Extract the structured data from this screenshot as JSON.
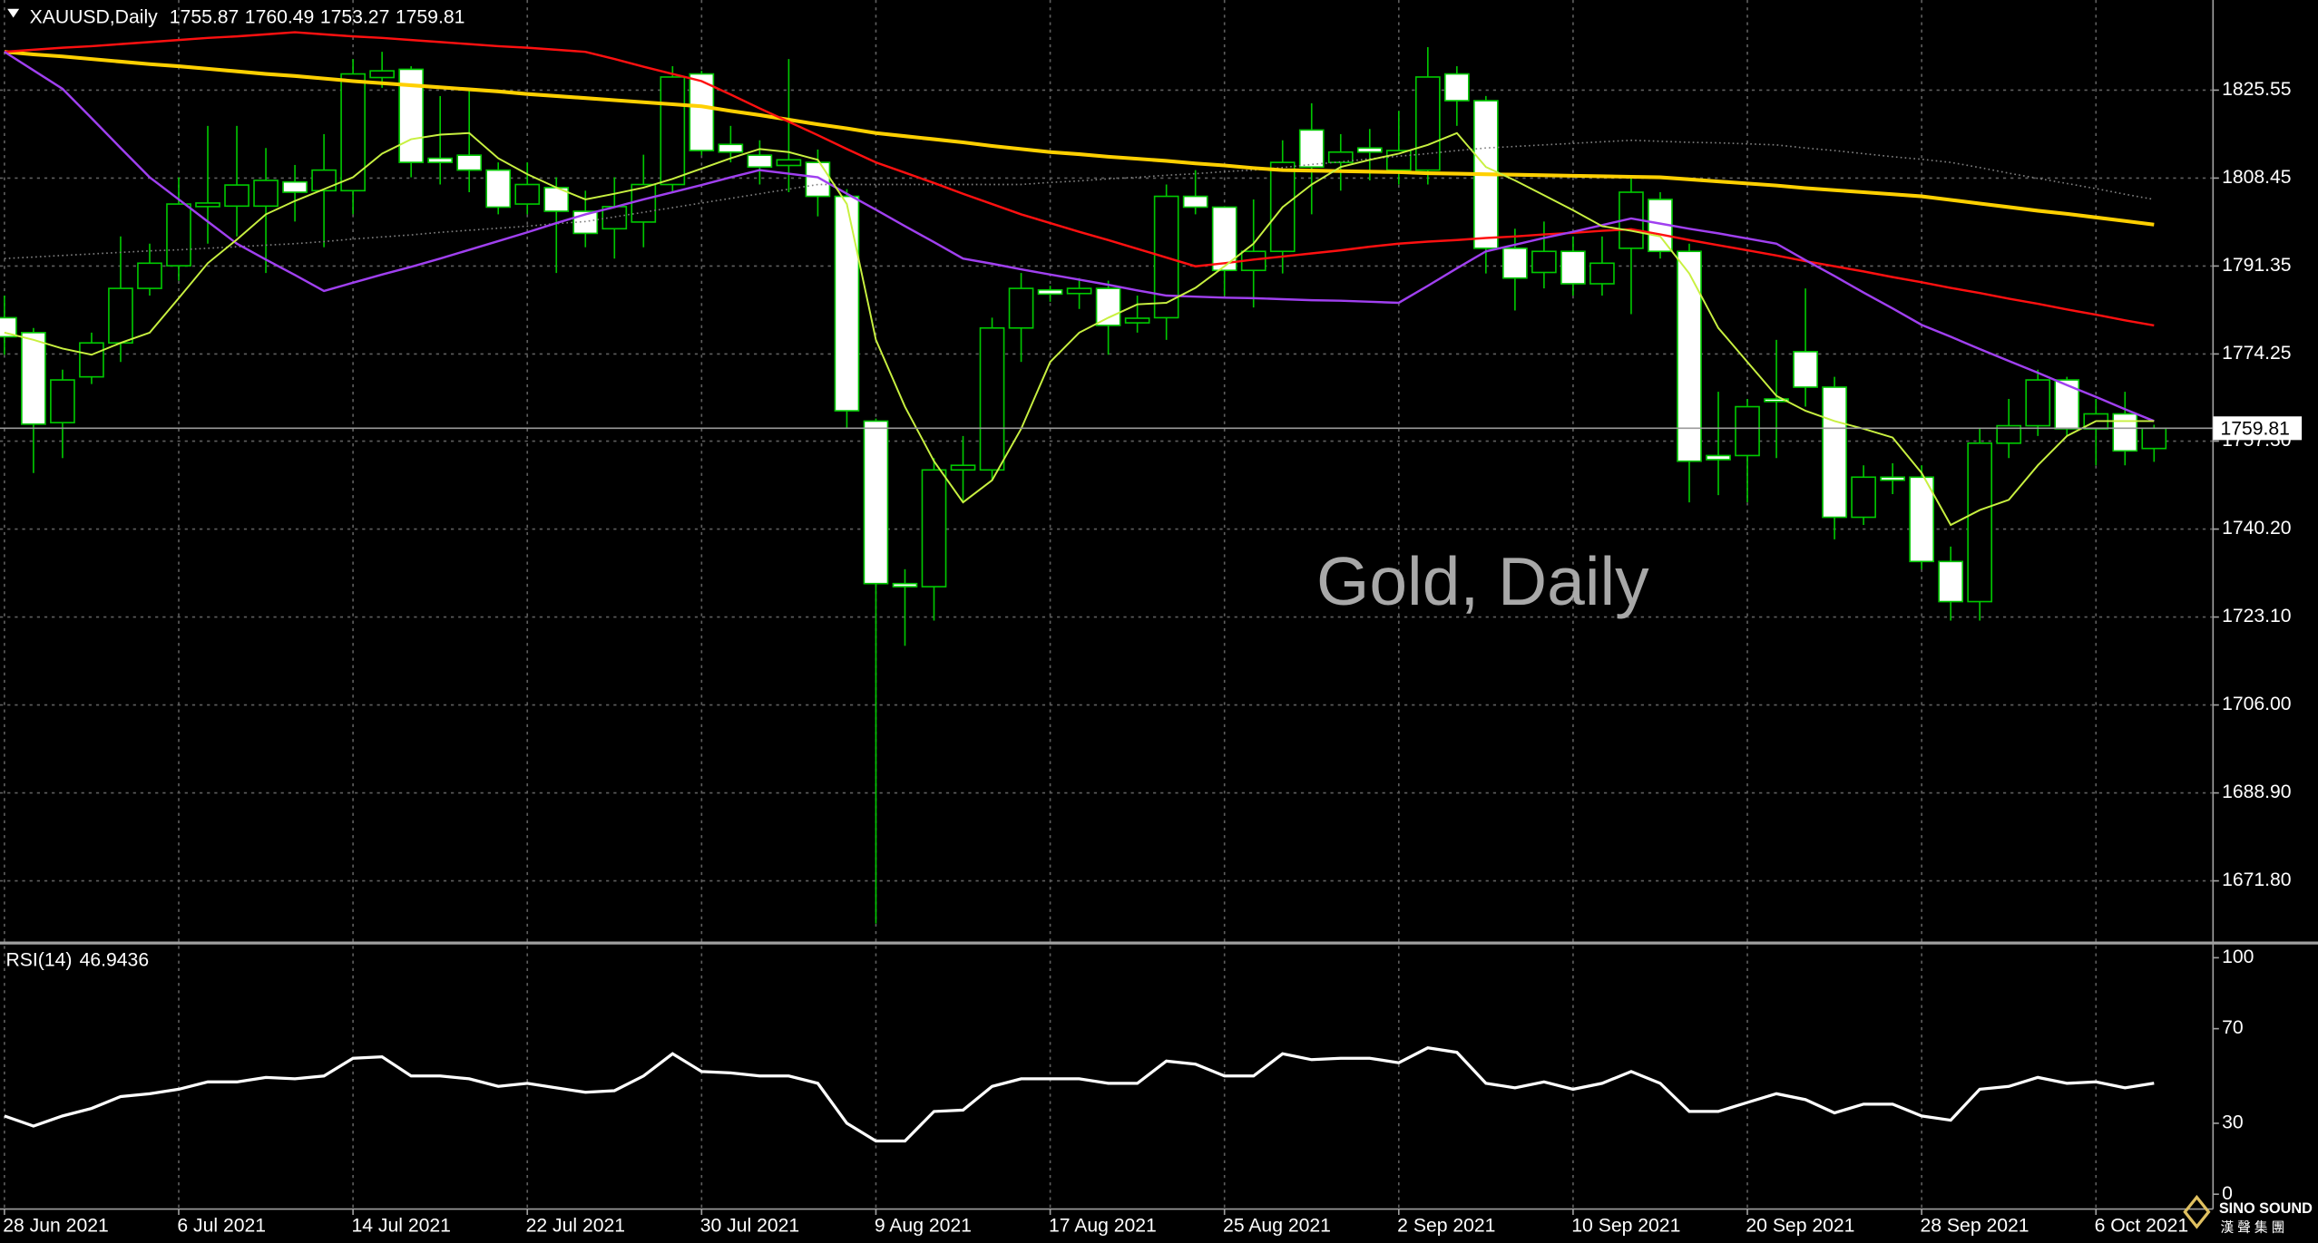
{
  "chart_data": {
    "type": "candlestick",
    "symbol": "XAUUSD,Daily",
    "watermark": "Gold, Daily",
    "categories": [
      "28 Jun 2021",
      null,
      null,
      null,
      null,
      null,
      "6 Jul 2021",
      null,
      null,
      null,
      null,
      null,
      "14 Jul 2021",
      null,
      null,
      null,
      null,
      null,
      "22 Jul 2021",
      null,
      null,
      null,
      null,
      null,
      "30 Jul 2021",
      null,
      null,
      null,
      null,
      null,
      "9 Aug 2021",
      null,
      null,
      null,
      null,
      null,
      "17 Aug 2021",
      null,
      null,
      null,
      null,
      null,
      "25 Aug 2021",
      null,
      null,
      null,
      null,
      null,
      "2 Sep 2021",
      null,
      null,
      null,
      null,
      null,
      "10 Sep 2021",
      null,
      null,
      null,
      null,
      null,
      "20 Sep 2021",
      null,
      null,
      null,
      null,
      null,
      "28 Sep 2021",
      null,
      null,
      null,
      null,
      null,
      "6 Oct 2021",
      null,
      null
    ],
    "open": [
      1781.3,
      1778.4,
      1760.9,
      1769.8,
      1776.4,
      1787.0,
      1791.4,
      1802.9,
      1803.0,
      1803.0,
      1807.7,
      1806.0,
      1806.0,
      1828.0,
      1829.6,
      1812.3,
      1812.9,
      1810.0,
      1803.4,
      1806.6,
      1802.0,
      1798.6,
      1799.9,
      1807.2,
      1828.7,
      1815.0,
      1812.9,
      1810.9,
      1811.5,
      1804.9,
      1761.2,
      1729.6,
      1729.0,
      1751.7,
      1751.7,
      1779.3,
      1786.7,
      1786.0,
      1787.0,
      1780.3,
      1781.3,
      1804.9,
      1802.8,
      1790.5,
      1794.2,
      1817.8,
      1811.5,
      1814.3,
      1810.0,
      1810.0,
      1828.7,
      1823.5,
      1794.8,
      1790.1,
      1794.2,
      1787.9,
      1794.8,
      1804.3,
      1794.2,
      1754.5,
      1754.5,
      1765.5,
      1774.7,
      1767.8,
      1742.5,
      1750.3,
      1750.3,
      1733.9,
      1726.1,
      1756.9,
      1760.3,
      1769.2,
      1759.7,
      1762.6,
      1755.87
    ],
    "high": [
      1785.6,
      1779.3,
      1771.2,
      1778.4,
      1797.1,
      1795.7,
      1808.6,
      1818.6,
      1818.6,
      1814.3,
      1811.0,
      1817.0,
      1831.6,
      1833.0,
      1830.2,
      1824.4,
      1825.8,
      1811.5,
      1811.5,
      1808.6,
      1806.0,
      1808.6,
      1813.0,
      1830.2,
      1829.3,
      1818.6,
      1815.8,
      1831.6,
      1814.0,
      1806.3,
      1761.7,
      1732.4,
      1754.0,
      1758.3,
      1781.3,
      1790.0,
      1787.5,
      1789.0,
      1788.5,
      1785.6,
      1807.2,
      1810.0,
      1803.0,
      1804.3,
      1815.8,
      1823.0,
      1817.0,
      1818.0,
      1821.5,
      1833.9,
      1830.2,
      1824.4,
      1798.6,
      1800.0,
      1797.1,
      1797.1,
      1808.6,
      1805.7,
      1795.7,
      1766.9,
      1765.5,
      1777.0,
      1787.0,
      1769.8,
      1752.6,
      1753.0,
      1752.6,
      1736.8,
      1759.7,
      1765.5,
      1771.2,
      1769.8,
      1765.5,
      1766.9,
      1760.49
    ],
    "low": [
      1774.1,
      1751.1,
      1754.0,
      1768.4,
      1772.7,
      1785.6,
      1788.5,
      1795.7,
      1797.1,
      1790.0,
      1800.0,
      1795.0,
      1801.4,
      1826.0,
      1808.6,
      1807.2,
      1805.7,
      1801.4,
      1801.4,
      1790.0,
      1795.0,
      1792.8,
      1795.0,
      1805.7,
      1812.9,
      1811.5,
      1807.2,
      1805.7,
      1801.0,
      1759.7,
      1663.5,
      1717.5,
      1722.4,
      1745.4,
      1749.7,
      1772.7,
      1784.4,
      1783.0,
      1774.1,
      1778.4,
      1777.0,
      1801.4,
      1785.6,
      1783.3,
      1789.9,
      1801.4,
      1806.0,
      1808.0,
      1807.2,
      1807.2,
      1818.6,
      1789.9,
      1782.7,
      1787.0,
      1785.6,
      1785.6,
      1782.0,
      1792.8,
      1745.4,
      1746.8,
      1745.4,
      1754.0,
      1764.0,
      1738.2,
      1741.0,
      1747.0,
      1732.4,
      1722.4,
      1722.4,
      1754.0,
      1758.3,
      1758.3,
      1752.6,
      1752.6,
      1753.27
    ],
    "close": [
      1777.6,
      1760.6,
      1769.2,
      1776.4,
      1787.0,
      1791.9,
      1803.4,
      1803.6,
      1807.1,
      1808.0,
      1805.7,
      1810.0,
      1828.7,
      1829.3,
      1811.5,
      1811.5,
      1810.0,
      1802.8,
      1807.2,
      1802.0,
      1797.7,
      1802.9,
      1807.2,
      1828.1,
      1813.8,
      1813.5,
      1810.6,
      1812.0,
      1804.9,
      1763.2,
      1729.6,
      1729.0,
      1751.7,
      1752.6,
      1779.3,
      1787.0,
      1785.9,
      1787.0,
      1779.8,
      1781.2,
      1804.9,
      1802.8,
      1790.5,
      1794.2,
      1811.5,
      1810.6,
      1813.5,
      1813.5,
      1813.8,
      1828.1,
      1823.5,
      1794.8,
      1789.0,
      1794.2,
      1787.9,
      1791.9,
      1805.7,
      1794.2,
      1753.4,
      1753.7,
      1764.0,
      1765.0,
      1767.8,
      1742.5,
      1750.3,
      1749.7,
      1733.9,
      1726.1,
      1756.9,
      1760.3,
      1769.2,
      1759.7,
      1762.6,
      1755.4,
      1759.81
    ],
    "up_color": "#000000",
    "down_color": "#ffffff",
    "wick_color": "#00c800",
    "series": [
      {
        "color": "#808080",
        "dashed": true,
        "values": [
          1792.8,
          1793.1,
          1793.4,
          1793.7,
          1794.0,
          1794.3,
          1794.5,
          1794.8,
          1795.1,
          1795.4,
          1795.7,
          1796.1,
          1796.6,
          1797.0,
          1797.4,
          1797.9,
          1798.3,
          1798.7,
          1799.1,
          1799.6,
          1800.0,
          1800.9,
          1801.8,
          1802.7,
          1803.6,
          1804.5,
          1805.4,
          1806.3,
          1807.2,
          1807.2,
          1807.2,
          1807.2,
          1807.2,
          1807.2,
          1807.2,
          1807.2,
          1807.6,
          1807.9,
          1808.3,
          1808.6,
          1809.0,
          1809.3,
          1809.7,
          1810.0,
          1810.5,
          1811.1,
          1811.6,
          1812.2,
          1812.7,
          1813.2,
          1813.8,
          1814.3,
          1814.6,
          1814.9,
          1815.2,
          1815.5,
          1815.8,
          1815.6,
          1815.4,
          1815.3,
          1815.1,
          1814.9,
          1814.3,
          1813.8,
          1813.2,
          1812.6,
          1812.1,
          1811.5,
          1810.5,
          1809.4,
          1808.4,
          1807.4,
          1806.4,
          1805.3,
          1804.3
        ]
      },
      {
        "color": "#ffd000",
        "width": 2.5,
        "values": [
          1833.0,
          1832.5,
          1832.1,
          1831.6,
          1831.1,
          1830.6,
          1830.2,
          1829.7,
          1829.2,
          1828.7,
          1828.3,
          1827.8,
          1827.3,
          1826.9,
          1826.5,
          1826.1,
          1825.7,
          1825.3,
          1824.8,
          1824.4,
          1824.0,
          1823.6,
          1823.2,
          1822.8,
          1822.4,
          1821.5,
          1820.7,
          1819.8,
          1818.9,
          1818.1,
          1817.2,
          1816.6,
          1816.0,
          1815.4,
          1814.7,
          1814.1,
          1813.5,
          1813.1,
          1812.6,
          1812.2,
          1811.8,
          1811.3,
          1810.9,
          1810.4,
          1810.0,
          1809.9,
          1809.8,
          1809.7,
          1809.6,
          1809.4,
          1809.3,
          1809.2,
          1809.1,
          1809.0,
          1808.9,
          1808.8,
          1808.7,
          1808.6,
          1808.2,
          1807.8,
          1807.4,
          1807.0,
          1806.5,
          1806.1,
          1805.7,
          1805.3,
          1804.9,
          1804.2,
          1803.5,
          1802.8,
          1802.1,
          1801.5,
          1800.8,
          1800.1,
          1799.4
        ]
      },
      {
        "color": "#ff1010",
        "width": 1.5,
        "values": [
          1833.0,
          1833.4,
          1833.8,
          1834.1,
          1834.5,
          1834.9,
          1835.3,
          1835.7,
          1836.0,
          1836.4,
          1836.8,
          1836.4,
          1836.0,
          1835.7,
          1835.3,
          1834.9,
          1834.5,
          1834.1,
          1833.8,
          1833.4,
          1833.0,
          1831.6,
          1830.1,
          1828.7,
          1827.3,
          1824.7,
          1822.0,
          1819.4,
          1816.8,
          1814.1,
          1811.5,
          1809.5,
          1807.5,
          1805.4,
          1803.4,
          1801.4,
          1799.7,
          1798.0,
          1796.4,
          1794.7,
          1793.0,
          1791.3,
          1791.9,
          1792.6,
          1793.2,
          1793.8,
          1794.4,
          1795.1,
          1795.7,
          1796.1,
          1796.4,
          1796.8,
          1797.1,
          1797.5,
          1797.8,
          1798.2,
          1798.5,
          1797.5,
          1796.4,
          1795.4,
          1794.4,
          1793.4,
          1792.3,
          1791.3,
          1790.3,
          1789.2,
          1788.2,
          1787.1,
          1786.1,
          1785.0,
          1784.0,
          1782.9,
          1781.9,
          1780.8,
          1779.8
        ]
      },
      {
        "color": "#a040f0",
        "width": 1.5,
        "values": [
          1833.0,
          1829.4,
          1825.8,
          1820.1,
          1814.3,
          1808.6,
          1804.3,
          1800.0,
          1795.7,
          1792.6,
          1789.6,
          1786.5,
          1788.1,
          1789.7,
          1791.2,
          1792.8,
          1794.5,
          1796.2,
          1797.9,
          1799.7,
          1801.4,
          1802.8,
          1804.3,
          1805.7,
          1807.1,
          1808.6,
          1810.0,
          1809.3,
          1808.6,
          1805.4,
          1802.3,
          1799.1,
          1796.0,
          1792.8,
          1791.8,
          1790.7,
          1789.7,
          1788.7,
          1787.7,
          1786.6,
          1785.6,
          1785.4,
          1785.2,
          1785.1,
          1784.9,
          1784.7,
          1784.6,
          1784.4,
          1784.2,
          1787.5,
          1790.9,
          1794.2,
          1795.5,
          1796.8,
          1798.0,
          1799.3,
          1800.6,
          1799.6,
          1798.6,
          1797.7,
          1796.7,
          1795.7,
          1792.5,
          1789.4,
          1786.2,
          1783.1,
          1779.9,
          1777.6,
          1775.2,
          1772.9,
          1770.6,
          1768.2,
          1765.9,
          1763.5,
          1761.2
        ]
      },
      {
        "color": "#c8f040",
        "width": 1.2,
        "values": [
          1778.4,
          1777.0,
          1775.3,
          1774.1,
          1776.4,
          1778.4,
          1785.1,
          1791.9,
          1796.5,
          1801.4,
          1804.0,
          1806.3,
          1808.6,
          1813.2,
          1816.0,
          1816.9,
          1817.2,
          1812.3,
          1809.2,
          1806.6,
          1804.3,
          1805.4,
          1806.6,
          1808.3,
          1810.3,
          1812.3,
          1814.1,
          1813.5,
          1812.0,
          1803.4,
          1777.0,
          1764.0,
          1753.4,
          1745.4,
          1749.7,
          1759.7,
          1772.7,
          1778.4,
          1781.3,
          1783.9,
          1784.2,
          1787.1,
          1791.3,
          1795.7,
          1802.8,
          1807.2,
          1810.6,
          1812.0,
          1813.2,
          1814.9,
          1817.2,
          1810.6,
          1808.0,
          1805.1,
          1802.2,
          1799.1,
          1798.2,
          1797.1,
          1789.9,
          1779.3,
          1772.7,
          1766.1,
          1763.2,
          1761.2,
          1759.7,
          1758.0,
          1751.1,
          1741.0,
          1743.9,
          1745.9,
          1752.6,
          1758.3,
          1761.2,
          1761.2,
          1761.2
        ]
      }
    ],
    "ylim": [
      1660.3,
      1842.5
    ],
    "yticks": [
      {
        "value": 1825.55,
        "label": "1825.55"
      },
      {
        "value": 1808.45,
        "label": "1808.45"
      },
      {
        "value": 1791.35,
        "label": "1791.35"
      },
      {
        "value": 1774.25,
        "label": "1774.25"
      },
      {
        "value": 1757.3,
        "label": "1757.30"
      },
      {
        "value": 1740.2,
        "label": "1740.20"
      },
      {
        "value": 1723.1,
        "label": "1723.10"
      },
      {
        "value": 1706,
        "label": "1706.00"
      },
      {
        "value": 1688.9,
        "label": "1688.90"
      },
      {
        "value": 1671.8,
        "label": "1671.80"
      }
    ],
    "grid": true,
    "grid_color": "#5f5f5f",
    "indicator": {
      "type": "line",
      "name": "RSI(14)",
      "color": "#ffffff",
      "values": [
        33.1,
        28.8,
        33.1,
        36.3,
        41.3,
        42.5,
        44.4,
        47.5,
        47.5,
        49.4,
        48.8,
        50.0,
        57.5,
        58.1,
        50.0,
        50.0,
        48.8,
        45.6,
        46.9,
        45.0,
        43.1,
        43.8,
        50.0,
        59.4,
        51.9,
        51.3,
        50.0,
        50.0,
        46.9,
        30.0,
        22.5,
        22.5,
        35.0,
        35.6,
        45.6,
        48.8,
        48.8,
        48.8,
        46.9,
        46.9,
        56.3,
        55.0,
        50.0,
        50.0,
        59.4,
        56.9,
        57.5,
        57.5,
        55.6,
        61.9,
        60.0,
        46.9,
        45.0,
        47.5,
        44.4,
        46.9,
        51.9,
        46.9,
        35.0,
        35.0,
        38.8,
        42.5,
        40.0,
        34.4,
        38.1,
        38.1,
        33.1,
        31.3,
        44.4,
        45.6,
        49.4,
        46.9,
        47.5,
        45.0,
        46.9436
      ],
      "ylim": [
        0,
        100
      ],
      "yticks": [
        100,
        70,
        30,
        0
      ]
    }
  },
  "logo": {
    "name": "SINO SOUND",
    "subtitle": "漢 聲 集 團"
  }
}
